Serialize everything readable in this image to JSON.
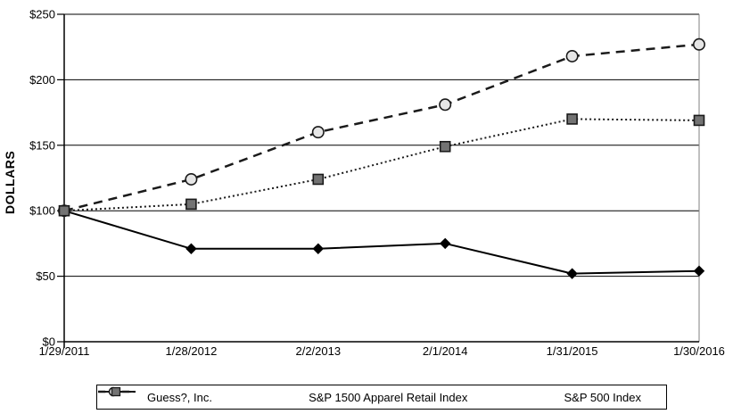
{
  "chart_data": {
    "type": "line",
    "title": "",
    "xlabel": "",
    "ylabel": "DOLLARS",
    "ylim": [
      0,
      250
    ],
    "y_ticks": [
      0,
      50,
      100,
      150,
      200,
      250
    ],
    "y_tick_labels": [
      "$0",
      "$50",
      "$100",
      "$150",
      "$200",
      "$250"
    ],
    "grid": "horizontal",
    "legend_position": "bottom",
    "categories": [
      "1/29/2011",
      "1/28/2012",
      "2/2/2013",
      "2/1/2014",
      "1/31/2015",
      "1/30/2016"
    ],
    "series": [
      {
        "name": "Guess?, Inc.",
        "values": [
          100,
          71,
          71,
          75,
          52,
          54
        ],
        "line_style": "solid",
        "line_color": "#000000",
        "marker": "diamond",
        "marker_fill": "#000000",
        "marker_stroke": "#000000"
      },
      {
        "name": "S&P 1500 Apparel Retail Index",
        "values": [
          100,
          124,
          160,
          181,
          218,
          227
        ],
        "line_style": "dashed",
        "line_color": "#1a1a1a",
        "marker": "circle",
        "marker_fill": "#e6e6e6",
        "marker_stroke": "#1a1a1a"
      },
      {
        "name": "S&P 500 Index",
        "values": [
          100,
          105,
          124,
          149,
          170,
          169
        ],
        "line_style": "dotted",
        "line_color": "#1a1a1a",
        "marker": "square",
        "marker_fill": "#737373",
        "marker_stroke": "#1a1a1a"
      }
    ],
    "colors": {
      "axis": "#000000",
      "gridline": "#000000",
      "plot_right_border": "#808080",
      "text": "#000000"
    }
  }
}
